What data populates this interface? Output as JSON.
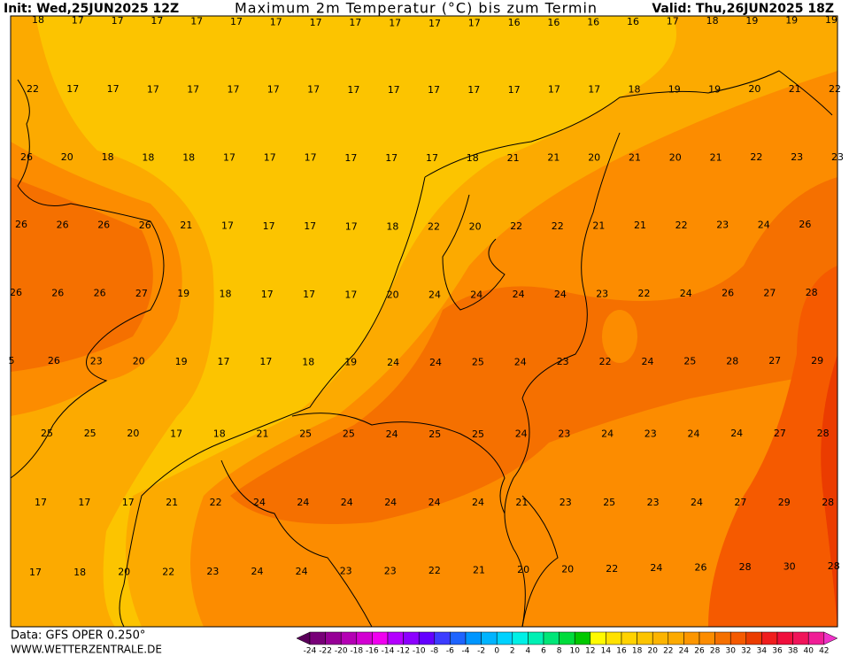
{
  "header": {
    "init": "Init: Wed,25JUN2025 12Z",
    "title": "Maximum 2m Temperatur (°C) bis zum Termin",
    "valid": "Valid: Thu,26JUN2025 18Z"
  },
  "map": {
    "rows": [
      [
        18,
        17,
        17,
        17,
        17,
        17,
        17,
        17,
        17,
        17,
        17,
        17,
        16,
        16,
        16,
        16,
        17,
        18,
        19,
        19,
        19
      ],
      [
        22,
        17,
        17,
        17,
        17,
        17,
        17,
        17,
        17,
        17,
        17,
        17,
        17,
        17,
        17,
        18,
        19,
        19,
        20,
        21,
        22
      ],
      [
        26,
        20,
        18,
        18,
        18,
        17,
        17,
        17,
        17,
        17,
        17,
        18,
        21,
        21,
        20,
        21,
        20,
        21,
        22,
        23,
        23
      ],
      [
        26,
        26,
        26,
        26,
        21,
        17,
        17,
        17,
        17,
        18,
        22,
        20,
        22,
        22,
        21,
        21,
        22,
        23,
        24,
        26
      ],
      [
        26,
        26,
        26,
        27,
        19,
        18,
        17,
        17,
        17,
        20,
        24,
        24,
        24,
        24,
        23,
        22,
        24,
        26,
        27,
        28
      ],
      [
        5,
        26,
        23,
        20,
        19,
        17,
        17,
        18,
        19,
        24,
        24,
        25,
        24,
        23,
        22,
        24,
        25,
        28,
        27,
        29
      ],
      [
        25,
        25,
        20,
        17,
        18,
        21,
        25,
        25,
        24,
        25,
        25,
        24,
        23,
        24,
        23,
        24,
        24,
        27,
        28
      ],
      [
        17,
        17,
        17,
        21,
        22,
        24,
        24,
        24,
        24,
        24,
        24,
        21,
        23,
        25,
        23,
        24,
        27,
        29,
        28
      ],
      [
        17,
        18,
        20,
        22,
        23,
        24,
        24,
        23,
        23,
        22,
        21,
        20,
        20,
        22,
        24,
        26,
        28,
        30,
        28
      ]
    ]
  },
  "colorbar": {
    "labels": [
      -24,
      -22,
      -20,
      -18,
      -16,
      -14,
      -12,
      -10,
      -8,
      -6,
      -4,
      -2,
      0,
      2,
      4,
      6,
      8,
      10,
      12,
      14,
      16,
      18,
      20,
      22,
      24,
      26,
      28,
      30,
      32,
      34,
      36,
      38,
      40,
      42
    ]
  },
  "footer": {
    "data": "Data: GFS OPER 0.250°",
    "site": "WWW.WETTERZENTRALE.DE"
  }
}
